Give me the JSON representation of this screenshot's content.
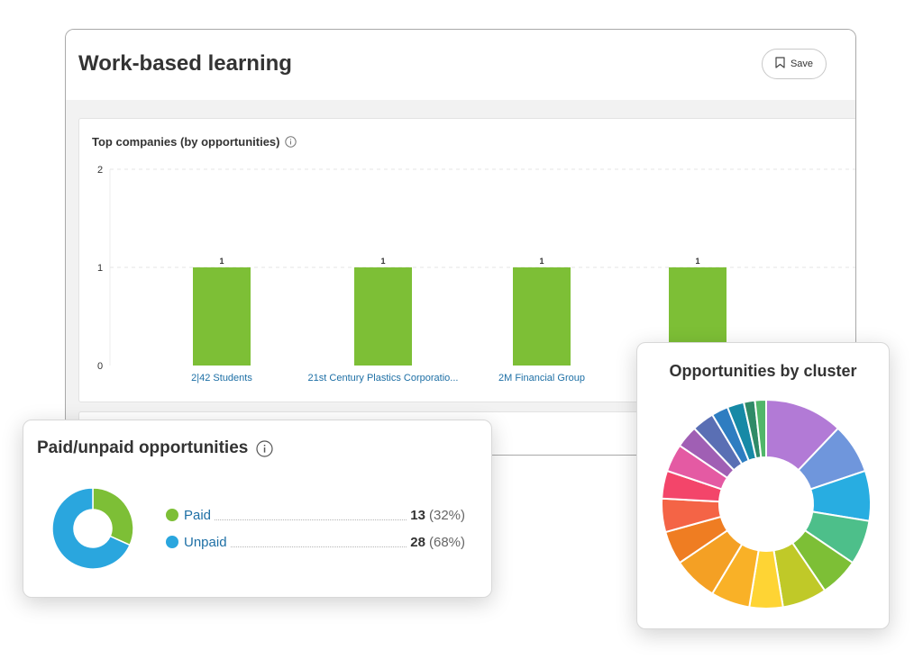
{
  "header": {
    "title": "Work-based learning",
    "save_label": "Save"
  },
  "top_companies": {
    "title": "Top companies (by opportunities)"
  },
  "paid_unpaid": {
    "title": "Paid/unpaid opportunities",
    "items": [
      {
        "label": "Paid",
        "count": "13",
        "percent": "(32%)",
        "color": "#7dbf36"
      },
      {
        "label": "Unpaid",
        "count": "28",
        "percent": "(68%)",
        "color": "#2aa6de"
      }
    ]
  },
  "cluster": {
    "title": "Opportunities by cluster"
  },
  "chart_data": [
    {
      "type": "bar",
      "title": "Top companies (by opportunities)",
      "categories": [
        "2|42 Students",
        "21st Century Plastics Corporatio...",
        "2M Financial Group",
        ""
      ],
      "values": [
        1,
        1,
        1,
        1
      ],
      "data_labels": [
        "1",
        "1",
        "1",
        "1"
      ],
      "yticks": [
        "0",
        "1",
        "2"
      ],
      "ylim": [
        0,
        2
      ],
      "bar_color": "#7dbf36",
      "category_color": "#1d6fa5",
      "grid": true
    },
    {
      "type": "pie",
      "title": "Paid/unpaid opportunities",
      "categories": [
        "Paid",
        "Unpaid"
      ],
      "values": [
        13,
        28
      ],
      "colors": [
        "#7dbf36",
        "#2aa6de"
      ]
    },
    {
      "type": "pie",
      "title": "Opportunities by cluster",
      "values": [
        14,
        9,
        9,
        8,
        7,
        8,
        6,
        7,
        8,
        6,
        6,
        5,
        5,
        4,
        4,
        3,
        3,
        2,
        2
      ],
      "colors": [
        "#b27ad6",
        "#6f96dc",
        "#28ade1",
        "#4dbf8a",
        "#7dbf36",
        "#c0c928",
        "#fed434",
        "#f9b127",
        "#f4a024",
        "#ef7d22",
        "#f46446",
        "#f3456a",
        "#e45aa3",
        "#a05fb4",
        "#5a6fb4",
        "#2e7dc1",
        "#1689a6",
        "#2f8a67",
        "#51b66a"
      ]
    }
  ]
}
